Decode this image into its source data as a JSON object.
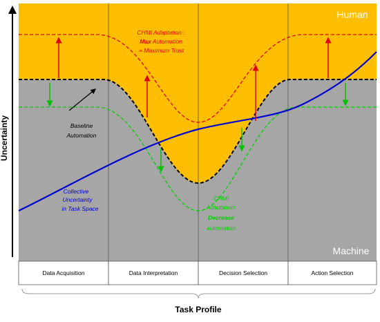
{
  "axis_label": "Uncertainty",
  "x_label": "Task Profile",
  "regions": {
    "top": "Human",
    "bottom": "Machine"
  },
  "columns": [
    "Data Acquisition",
    "Data Interpretation",
    "Decision Selection",
    "Action Selection"
  ],
  "annotations": {
    "max_adaptation": {
      "line1": "CHMI Adaptation :",
      "bold": "Max",
      "line2_rest": "Automation",
      "line3": "∝ Maximum Trust"
    },
    "baseline": {
      "line1": "Baseline",
      "line2": "Automation"
    },
    "collective": {
      "line1": "Collective",
      "line2": "Uncertainty",
      "line3": "in Task Space"
    },
    "decrease_adaptation": {
      "line1": "CHMI",
      "line2": "Adaptation:",
      "bold": "Decrease",
      "line4": "automation"
    }
  }
}
